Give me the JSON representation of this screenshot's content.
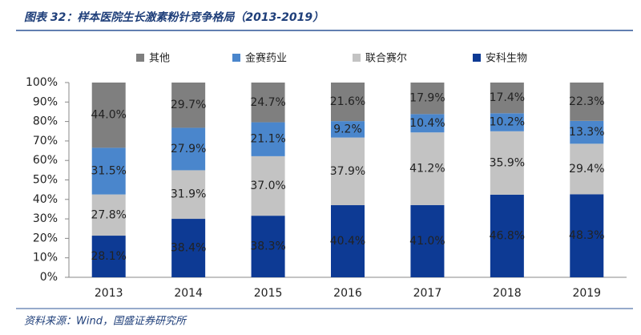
{
  "chart_data": {
    "type": "bar",
    "stacking": "percent",
    "title": "图表 32：样本医院生长激素粉针竞争格局（2013-2019）",
    "source": "资料来源：Wind，国盛证券研究所",
    "categories": [
      "2013",
      "2014",
      "2015",
      "2016",
      "2017",
      "2018",
      "2019"
    ],
    "series": [
      {
        "name": "安科生物",
        "color": "#0d3a94",
        "values": [
          28.1,
          38.4,
          38.3,
          40.4,
          41.0,
          46.8,
          48.3
        ],
        "value_labels": [
          "28.1%",
          "38.4%",
          "38.3%",
          "40.4%",
          "41.0%",
          "46.8%",
          "48.3%"
        ]
      },
      {
        "name": "联合赛尔",
        "color": "#c3c3c3",
        "values": [
          27.8,
          31.9,
          37.0,
          37.9,
          41.2,
          35.9,
          29.4
        ],
        "value_labels": [
          "27.8%",
          "31.9%",
          "37.0%",
          "37.9%",
          "41.2%",
          "35.9%",
          "29.4%"
        ]
      },
      {
        "name": "金赛药业",
        "color": "#4a86cc",
        "values": [
          31.5,
          27.9,
          21.1,
          9.2,
          10.4,
          10.2,
          13.3
        ],
        "value_labels": [
          "31.5%",
          "27.9%",
          "21.1%",
          "9.2%",
          "10.4%",
          "10.2%",
          "13.3%"
        ]
      },
      {
        "name": "其他",
        "color": "#7f7f7f",
        "values": [
          44.0,
          29.7,
          24.7,
          21.6,
          17.9,
          17.4,
          22.3
        ],
        "value_labels": [
          "44.0%",
          "29.7%",
          "24.7%",
          "21.6%",
          "17.9%",
          "17.4%",
          "22.3%"
        ]
      }
    ],
    "ylim": [
      0,
      100
    ],
    "yticks": [
      {
        "value": 0,
        "label": "0%"
      },
      {
        "value": 10,
        "label": "10%"
      },
      {
        "value": 20,
        "label": "20%"
      },
      {
        "value": 30,
        "label": "30%"
      },
      {
        "value": 40,
        "label": "40%"
      },
      {
        "value": 50,
        "label": "50%"
      },
      {
        "value": 60,
        "label": "60%"
      },
      {
        "value": 70,
        "label": "70%"
      },
      {
        "value": 80,
        "label": "80%"
      },
      {
        "value": 90,
        "label": "90%"
      },
      {
        "value": 100,
        "label": "100%"
      }
    ],
    "legend": "top"
  }
}
